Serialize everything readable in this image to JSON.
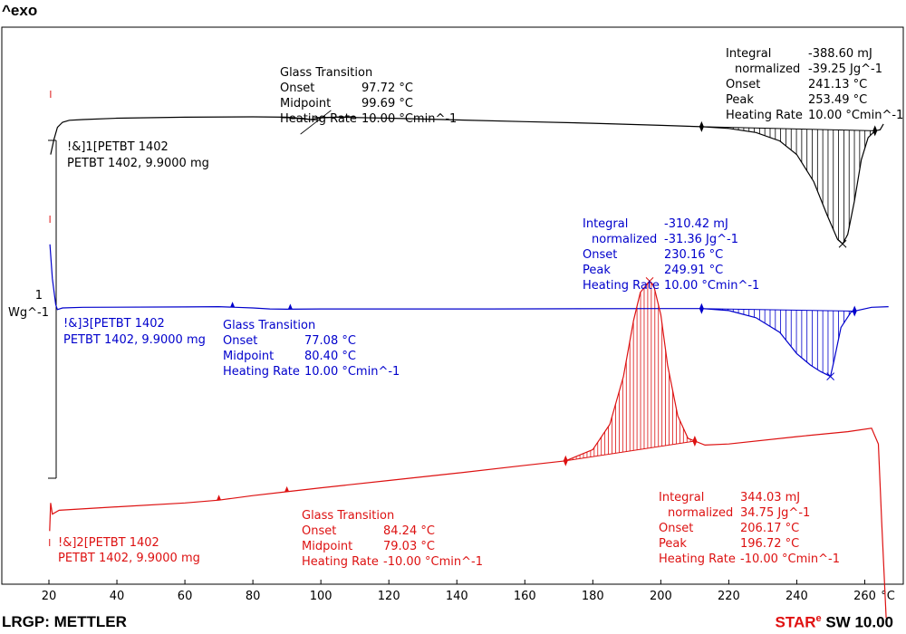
{
  "header": {
    "exo_label": "^exo"
  },
  "footer": {
    "left": "LRGP: METTLER",
    "brand_star": "STAR",
    "brand_e": "e",
    "brand_rest": " SW 10.00"
  },
  "colors": {
    "black": "#000000",
    "blue": "#0000cc",
    "red": "#dd1111"
  },
  "chart_data": {
    "type": "line",
    "xlabel": "°C",
    "xlim": [
      20,
      267
    ],
    "x_ticks": [
      "20",
      "40",
      "60",
      "80",
      "100",
      "120",
      "140",
      "160",
      "180",
      "200",
      "220",
      "240",
      "260"
    ],
    "y_scale": {
      "value": "1",
      "unit": "Wg^-1"
    },
    "series": [
      {
        "name": "!&]1[PETBT 1402",
        "sample": "PETBT 1402, 9.9000 mg",
        "color": "black",
        "points": [
          [
            20.5,
            -0.95
          ],
          [
            21.5,
            -0.5
          ],
          [
            22.5,
            -0.15
          ],
          [
            24,
            0.0
          ],
          [
            26,
            0.06
          ],
          [
            30,
            0.08
          ],
          [
            40,
            0.12
          ],
          [
            60,
            0.15
          ],
          [
            80,
            0.16
          ],
          [
            90,
            0.15
          ],
          [
            95,
            0.11
          ],
          [
            97,
            0.08
          ],
          [
            100,
            0.13
          ],
          [
            105,
            0.15
          ],
          [
            120,
            0.12
          ],
          [
            140,
            0.07
          ],
          [
            160,
            0.02
          ],
          [
            180,
            -0.03
          ],
          [
            200,
            -0.09
          ],
          [
            212,
            -0.13
          ],
          [
            220,
            -0.18
          ],
          [
            228,
            -0.3
          ],
          [
            235,
            -0.55
          ],
          [
            240,
            -0.95
          ],
          [
            245,
            -1.75
          ],
          [
            249,
            -2.75
          ],
          [
            252,
            -3.45
          ],
          [
            253.49,
            -3.58
          ],
          [
            255,
            -3.3
          ],
          [
            257,
            -2.3
          ],
          [
            259,
            -1.1
          ],
          [
            261,
            -0.45
          ],
          [
            263,
            -0.25
          ],
          [
            264.5,
            -0.22
          ],
          [
            265.5,
            -0.05
          ]
        ]
      },
      {
        "name": "!&]3[PETBT 1402",
        "sample": "PETBT 1402, 9.9000 mg",
        "color": "blue",
        "points": [
          [
            20.3,
            1.95
          ],
          [
            21,
            0.9
          ],
          [
            22,
            0.1
          ],
          [
            22.5,
            -0.05
          ],
          [
            24,
            0.0
          ],
          [
            30,
            0.02
          ],
          [
            60,
            0.03
          ],
          [
            70,
            0.04
          ],
          [
            75,
            0.02
          ],
          [
            80,
            0.0
          ],
          [
            85,
            -0.03
          ],
          [
            90,
            -0.04
          ],
          [
            100,
            -0.03
          ],
          [
            150,
            -0.03
          ],
          [
            200,
            -0.02
          ],
          [
            212,
            -0.02
          ],
          [
            220,
            -0.08
          ],
          [
            228,
            -0.3
          ],
          [
            235,
            -0.75
          ],
          [
            240,
            -1.4
          ],
          [
            244,
            -1.75
          ],
          [
            247,
            -1.95
          ],
          [
            249.91,
            -2.1
          ],
          [
            251,
            -1.6
          ],
          [
            253,
            -0.6
          ],
          [
            256,
            -0.12
          ],
          [
            262,
            0.02
          ],
          [
            267,
            0.04
          ]
        ]
      },
      {
        "name": "!&]2[PETBT 1402",
        "sample": "PETBT 1402, 9.9000 mg",
        "color": "red",
        "points": [
          [
            20.2,
            -1.15
          ],
          [
            20.5,
            -0.65
          ],
          [
            21,
            -0.85
          ],
          [
            23,
            -0.78
          ],
          [
            40,
            -0.72
          ],
          [
            60,
            -0.65
          ],
          [
            70,
            -0.6
          ],
          [
            80,
            -0.52
          ],
          [
            90,
            -0.45
          ],
          [
            100,
            -0.38
          ],
          [
            120,
            -0.25
          ],
          [
            140,
            -0.12
          ],
          [
            160,
            0.02
          ],
          [
            172,
            0.1
          ],
          [
            180,
            0.3
          ],
          [
            185,
            0.75
          ],
          [
            189,
            1.6
          ],
          [
            192,
            2.6
          ],
          [
            194,
            3.1
          ],
          [
            196.72,
            3.3
          ],
          [
            198,
            3.2
          ],
          [
            200,
            2.7
          ],
          [
            202,
            1.8
          ],
          [
            205,
            0.9
          ],
          [
            208,
            0.5
          ],
          [
            213,
            0.38
          ],
          [
            220,
            0.4
          ],
          [
            240,
            0.53
          ],
          [
            255,
            0.62
          ],
          [
            262,
            0.68
          ],
          [
            264,
            0.4
          ],
          [
            265,
            -1.0
          ],
          [
            266.3,
            -2.7
          ]
        ]
      }
    ],
    "annotations": {
      "black_gt": {
        "title": "Glass Transition",
        "rows": [
          [
            "Onset",
            "97.72 °C"
          ],
          [
            "Midpoint",
            "99.69 °C"
          ],
          [
            "Heating Rate",
            "10.00 °Cmin^-1"
          ]
        ]
      },
      "black_int": {
        "rows": [
          [
            "Integral",
            "-388.60 mJ"
          ],
          [
            "normalized",
            "-39.25 Jg^-1"
          ],
          [
            "Onset",
            "241.13 °C"
          ],
          [
            "Peak",
            "253.49 °C"
          ],
          [
            "Heating Rate",
            "10.00 °Cmin^-1"
          ]
        ]
      },
      "blue_gt": {
        "title": "Glass Transition",
        "rows": [
          [
            "Onset",
            "77.08 °C"
          ],
          [
            "Midpoint",
            "80.40 °C"
          ],
          [
            "Heating Rate",
            "10.00 °Cmin^-1"
          ]
        ]
      },
      "blue_int": {
        "rows": [
          [
            "Integral",
            "-310.42 mJ"
          ],
          [
            "normalized",
            "-31.36 Jg^-1"
          ],
          [
            "Onset",
            "230.16 °C"
          ],
          [
            "Peak",
            "249.91 °C"
          ],
          [
            "Heating Rate",
            "10.00 °Cmin^-1"
          ]
        ]
      },
      "red_gt": {
        "title": "Glass Transition",
        "rows": [
          [
            "Onset",
            "84.24 °C"
          ],
          [
            "Midpoint",
            "79.03 °C"
          ],
          [
            "Heating Rate",
            "-10.00 °Cmin^-1"
          ]
        ]
      },
      "red_int": {
        "rows": [
          [
            "Integral",
            "344.03 mJ"
          ],
          [
            "normalized",
            "34.75 Jg^-1"
          ],
          [
            "Onset",
            "206.17 °C"
          ],
          [
            "Peak",
            "196.72 °C"
          ],
          [
            "Heating Rate",
            "-10.00 °Cmin^-1"
          ]
        ]
      }
    }
  }
}
